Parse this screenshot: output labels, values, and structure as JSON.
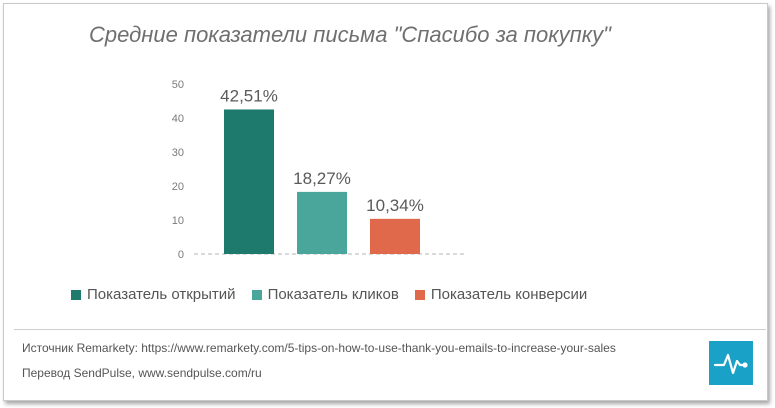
{
  "title": "Средние показатели письма \"Спасибо за покупку\"",
  "chart_data": {
    "type": "bar",
    "categories": [
      "Показатель открытий",
      "Показатель кликов",
      "Показатель конверсии"
    ],
    "values": [
      42.51,
      18.27,
      10.34
    ],
    "data_labels": [
      "42,51%",
      "18,27%",
      "10,34%"
    ],
    "colors": [
      "#1f7a6e",
      "#4aa59a",
      "#e0684b"
    ],
    "yticks": [
      0,
      10,
      20,
      30,
      40,
      50
    ],
    "ylim": [
      0,
      50
    ],
    "grid": false,
    "legend_position": "bottom"
  },
  "legend": [
    {
      "label": "Показатель открытий",
      "color": "#1f7a6e"
    },
    {
      "label": "Показатель кликов",
      "color": "#4aa59a"
    },
    {
      "label": "Показатель конверсии",
      "color": "#e0684b"
    }
  ],
  "footer": {
    "source": "Источник Remarkety: https://www.remarkety.com/5-tips-on-how-to-use-thank-you-emails-to-increase-your-sales",
    "translation": "Перевод SendPulse, www.sendpulse.com/ru"
  },
  "logo_icon": "sendpulse-logo-icon"
}
